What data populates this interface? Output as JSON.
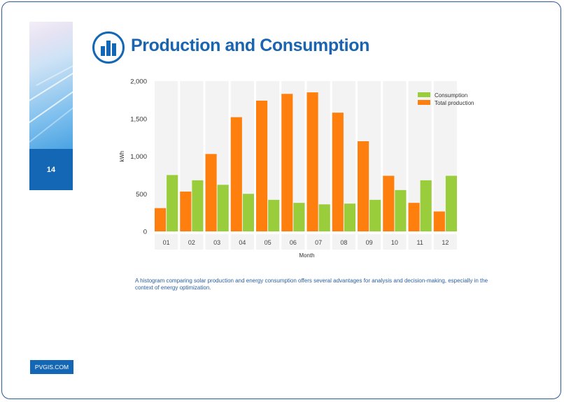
{
  "page": {
    "number": "14",
    "title": "Production and Consumption",
    "caption": "A histogram comparing solar production and energy consumption offers several advantages for analysis and decision-making, especially in the context of energy optimization.",
    "site_label": "PVGIS.COM",
    "logo_icon": "bar-chart-icon",
    "accent_color": "#1467b4"
  },
  "chart_data": {
    "type": "bar",
    "title": "",
    "xlabel": "Month",
    "ylabel": "kWh",
    "categories": [
      "01",
      "02",
      "03",
      "04",
      "05",
      "06",
      "07",
      "08",
      "09",
      "10",
      "11",
      "12"
    ],
    "ylim": [
      0,
      2000
    ],
    "yticks": [
      0,
      500,
      1000,
      1500,
      2000
    ],
    "ytick_labels": [
      "0",
      "500",
      "1,000",
      "1,500",
      "2,000"
    ],
    "grid": false,
    "legend_position": "top-right",
    "series": [
      {
        "name": "Total production",
        "color": "#ff7f0e",
        "values": [
          310,
          530,
          1030,
          1520,
          1740,
          1830,
          1850,
          1580,
          1200,
          740,
          380,
          265
        ]
      },
      {
        "name": "Consumption",
        "color": "#9acd3c",
        "values": [
          750,
          680,
          620,
          500,
          420,
          380,
          360,
          370,
          420,
          550,
          680,
          740
        ]
      }
    ],
    "legend_order": [
      "Consumption",
      "Total production"
    ]
  }
}
